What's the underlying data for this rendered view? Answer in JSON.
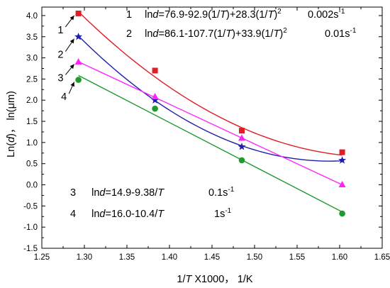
{
  "chart_data": {
    "type": "line",
    "xlabel": {
      "prefix": "1/",
      "var": "T",
      "suffix": " X1000， 1/K"
    },
    "ylabel": {
      "prefix": "Ln(",
      "var": "d",
      "suffix": ")， ln(μm)"
    },
    "xlim": [
      1.25,
      1.65
    ],
    "ylim": [
      -1.5,
      4.2
    ],
    "xticks": [
      "1.25",
      "1.30",
      "1.35",
      "1.40",
      "1.45",
      "1.50",
      "1.55",
      "1.60",
      "1.65"
    ],
    "yticks": [
      "-1.5",
      "-1.0",
      "-0.5",
      "0.0",
      "0.5",
      "1.0",
      "1.5",
      "2.0",
      "2.5",
      "3.0",
      "3.5",
      "4.0"
    ],
    "series": [
      {
        "label": "1",
        "color": "#e01c24",
        "marker": "square",
        "x": [
          1.293,
          1.383,
          1.485,
          1.603
        ],
        "y": [
          4.05,
          2.7,
          1.28,
          0.77
        ],
        "fit": {
          "kind": "quadratic",
          "coef": [
            76.9,
            -92.9,
            28.3
          ]
        },
        "callout_label_pos": [
          1.272,
          3.58
        ]
      },
      {
        "label": "2",
        "color": "#1f1fa8",
        "marker": "star",
        "x": [
          1.293,
          1.383,
          1.485,
          1.603
        ],
        "y": [
          3.5,
          2.0,
          0.9,
          0.58
        ],
        "fit": {
          "kind": "quadratic",
          "coef": [
            86.1,
            -107.7,
            33.9
          ]
        },
        "callout_label_pos": [
          1.272,
          3.0
        ]
      },
      {
        "label": "3",
        "color": "#ff24ff",
        "marker": "triangle",
        "x": [
          1.293,
          1.383,
          1.485,
          1.603
        ],
        "y": [
          2.9,
          2.08,
          1.1,
          0.0
        ],
        "fit": {
          "kind": "linear"
        },
        "callout_label_pos": [
          1.272,
          2.45
        ]
      },
      {
        "label": "4",
        "color": "#1e9a2e",
        "marker": "circle",
        "x": [
          1.293,
          1.383,
          1.485,
          1.603
        ],
        "y": [
          2.48,
          1.8,
          0.58,
          -0.68
        ],
        "fit": {
          "kind": "linear"
        },
        "callout_label_pos": [
          1.276,
          2.0
        ]
      }
    ],
    "annotations": [
      {
        "num": "1",
        "pre": "ln",
        "var": "d",
        "eq": "=76.9-92.9(1/",
        "var2": "T",
        "eq2": ")+28.3(1/",
        "var3": "T",
        "eq3": ")",
        "sup": "2",
        "rate": "0.002s",
        "rate_sup": "-1"
      },
      {
        "num": "2",
        "pre": "ln",
        "var": "d",
        "eq": "=86.1-107.7(1/",
        "var2": "T",
        "eq2": ")+33.9(1/",
        "var3": "T",
        "eq3": ")",
        "sup": "2",
        "rate": "0.01s",
        "rate_sup": "-1"
      },
      {
        "num": "3",
        "pre": "ln",
        "var": "d",
        "eq": "=14.9-9.38/",
        "var2": "T",
        "rate": "0.1s",
        "rate_sup": "-1"
      },
      {
        "num": "4",
        "pre": "ln",
        "var": "d",
        "eq": "=16.0-10.4/",
        "var2": "T",
        "rate": "1s",
        "rate_sup": "-1"
      }
    ]
  }
}
